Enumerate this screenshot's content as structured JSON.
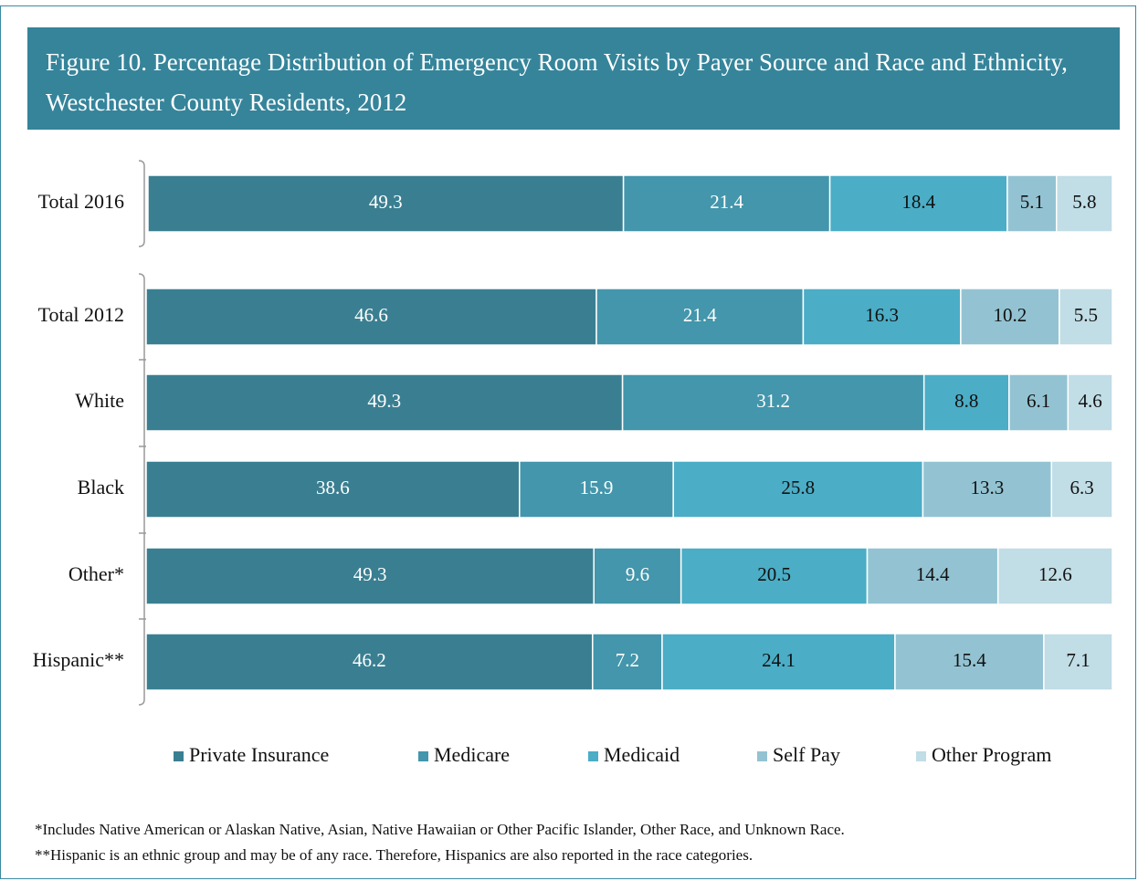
{
  "chart_data": {
    "type": "bar",
    "orientation": "horizontal",
    "stacked": true,
    "title": "Figure 10.  Percentage Distribution of Emergency Room Visits by Payer Source and Race and Ethnicity, Westchester County Residents, 2012",
    "categories": [
      "Total 2016",
      "Total 2012",
      "White",
      "Black",
      "Other*",
      "Hispanic**"
    ],
    "series": [
      {
        "name": "Private Insurance",
        "color": "#3a7f91",
        "values": [
          49.3,
          46.6,
          49.3,
          38.6,
          49.3,
          46.2
        ]
      },
      {
        "name": "Medicare",
        "color": "#4396ab",
        "values": [
          21.4,
          21.4,
          31.2,
          15.9,
          9.6,
          7.2
        ]
      },
      {
        "name": "Medicaid",
        "color": "#4badc6",
        "values": [
          18.4,
          16.3,
          8.8,
          25.8,
          20.5,
          24.1
        ]
      },
      {
        "name": "Self Pay",
        "color": "#93c3d2",
        "values": [
          5.1,
          10.2,
          6.1,
          13.3,
          14.4,
          15.4
        ]
      },
      {
        "name": "Other Program",
        "color": "#c1dde6",
        "values": [
          5.8,
          5.5,
          4.6,
          6.3,
          12.6,
          7.1
        ]
      }
    ],
    "legend": "bottom",
    "notes": [
      "*Includes Native American or Alaskan Native, Asian, Native Hawaiian or Other Pacific Islander, Other Race, and Unknown Race.",
      "**Hispanic is an ethnic group and may be of any race.  Therefore, Hispanics are also reported in the race categories."
    ]
  }
}
